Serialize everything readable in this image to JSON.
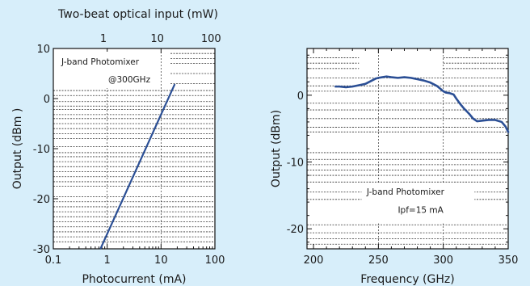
{
  "chart_data": [
    {
      "type": "line",
      "x_scale": "log",
      "xlabel": "Photocurrent (mA)",
      "ylabel": "Output (dBm )",
      "top_xlabel": "Two-beat optical input (mW)",
      "xlim": [
        0.1,
        100
      ],
      "ylim": [
        -30,
        10
      ],
      "x_ticks": [
        "0.1",
        "1",
        "10",
        "100"
      ],
      "y_ticks": [
        "-30",
        "-20",
        "-10",
        "0",
        "10"
      ],
      "top_ticks": [
        "1",
        "10",
        "100"
      ],
      "annotation": [
        "J-band Photomixer",
        "@300GHz"
      ],
      "grid": true,
      "series": [
        {
          "x": [
            0.75,
            18
          ],
          "y": [
            -30,
            2.9
          ]
        }
      ],
      "colors": {
        "line": "#2b4f95"
      }
    },
    {
      "type": "line",
      "xlabel": "Frequency (GHz)",
      "ylabel": "Output (dBm)",
      "xlim": [
        195,
        350
      ],
      "ylim": [
        -23,
        7
      ],
      "x_ticks": [
        "200",
        "250",
        "300",
        "350"
      ],
      "y_ticks": [
        "-20",
        "-10",
        "0"
      ],
      "annotation": [
        "J-band Photomixer",
        "Ipf=15 mA"
      ],
      "grid": true,
      "series": [
        {
          "x": [
            217,
            220,
            225,
            230,
            235,
            240,
            245,
            248,
            250,
            253,
            256,
            260,
            265,
            270,
            275,
            280,
            285,
            290,
            295,
            300,
            302,
            305,
            308,
            310,
            313,
            316,
            320,
            323,
            326,
            330,
            335,
            340,
            345,
            348,
            350
          ],
          "y": [
            1.3,
            1.3,
            1.2,
            1.3,
            1.5,
            1.7,
            2.2,
            2.5,
            2.6,
            2.7,
            2.8,
            2.7,
            2.6,
            2.7,
            2.6,
            2.4,
            2.2,
            1.9,
            1.4,
            0.6,
            0.4,
            0.3,
            0.1,
            -0.5,
            -1.3,
            -2.0,
            -2.8,
            -3.5,
            -3.9,
            -3.8,
            -3.7,
            -3.7,
            -4.0,
            -4.7,
            -5.5
          ]
        }
      ],
      "colors": {
        "line": "#2b4f95"
      }
    }
  ]
}
